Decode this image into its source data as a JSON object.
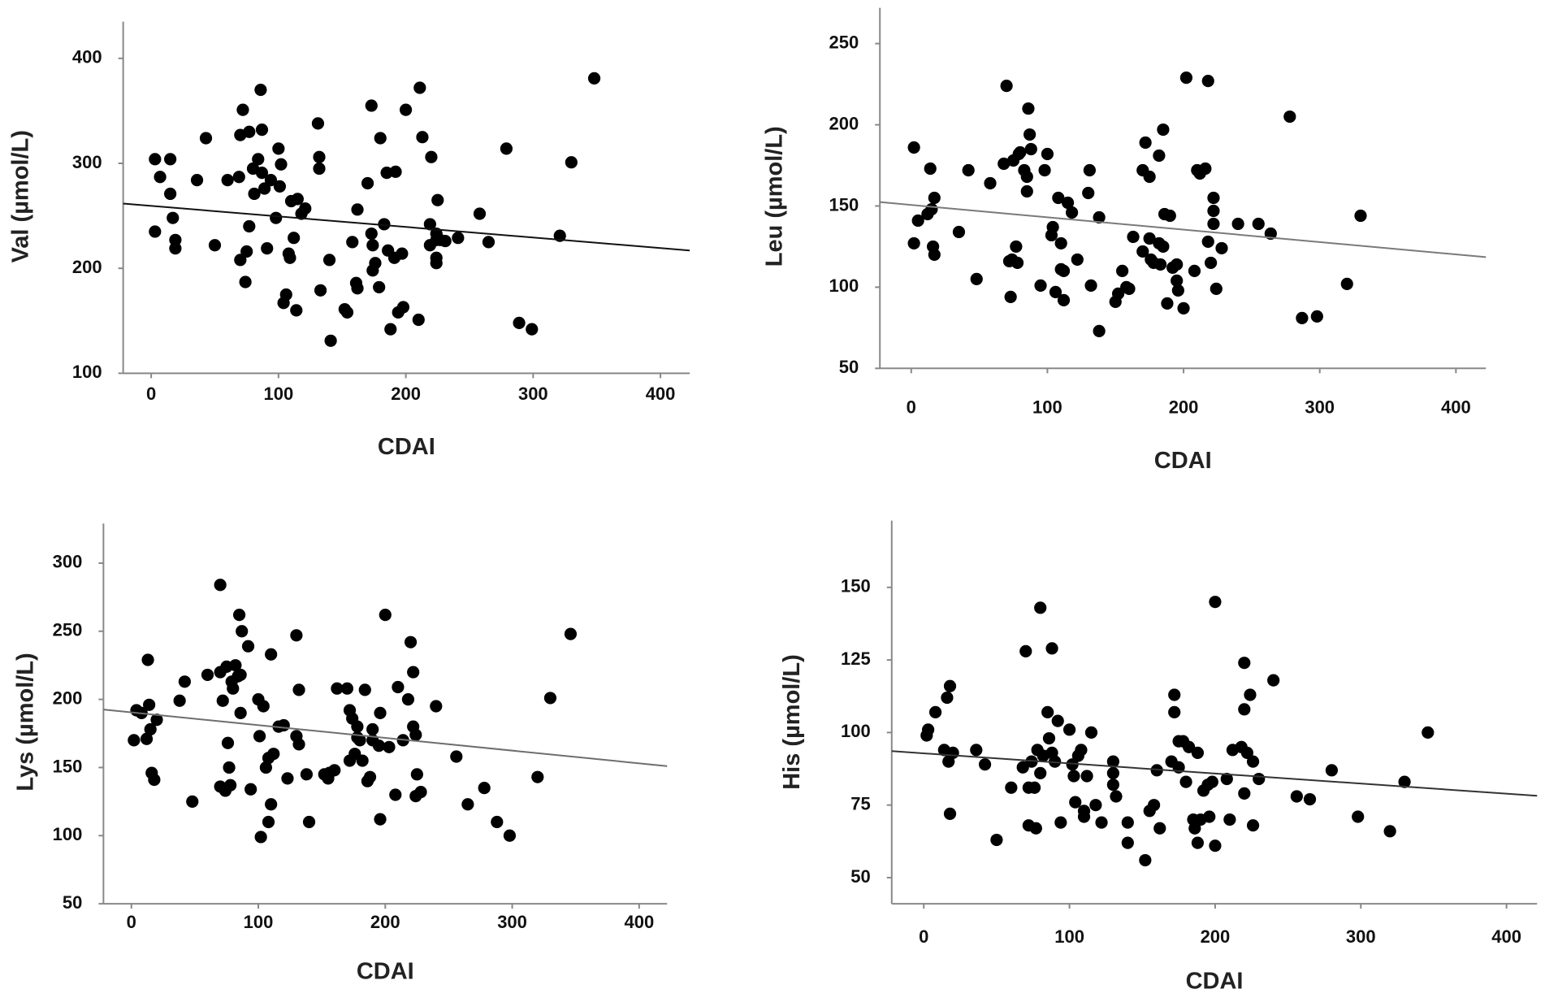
{
  "chart_data": [
    {
      "type": "scatter",
      "x_label": "CDAI",
      "y_label": "Val (µmol/L)",
      "xlim": [
        -22,
        423
      ],
      "ylim": [
        100,
        435
      ],
      "xticks": [
        0,
        100,
        200,
        300,
        400
      ],
      "yticks": [
        100,
        200,
        300,
        400
      ],
      "series": [
        {
          "color": "#000000",
          "x": [
            3,
            3,
            7,
            15,
            15,
            17,
            19,
            19,
            36,
            43,
            50,
            60,
            69,
            70,
            72,
            70,
            74,
            75,
            77,
            77,
            80,
            81,
            84,
            86,
            87,
            87,
            89,
            91,
            94,
            98,
            100,
            101,
            102,
            104,
            106,
            108,
            109,
            110,
            112,
            114,
            115,
            118,
            121,
            131,
            132,
            132,
            133,
            140,
            141,
            152,
            154,
            158,
            161,
            162,
            162,
            170,
            173,
            173,
            174,
            174,
            176,
            179,
            180,
            183,
            185,
            186,
            188,
            191,
            192,
            194,
            197,
            198,
            200,
            210,
            211,
            213,
            219,
            219,
            220,
            224,
            224,
            225,
            224,
            224,
            227,
            231,
            241,
            258,
            265,
            279,
            289,
            299,
            321,
            330,
            348
          ],
          "y": [
            235,
            304,
            287,
            304,
            271,
            248,
            227,
            219,
            284,
            324,
            222,
            284,
            287,
            327,
            351,
            208,
            187,
            216,
            240,
            330,
            295,
            271,
            304,
            370,
            332,
            291,
            276,
            219,
            284,
            248,
            314,
            278,
            299,
            167,
            175,
            214,
            210,
            264,
            229,
            160,
            266,
            252,
            257,
            338,
            295,
            306,
            179,
            208,
            131,
            161,
            158,
            225,
            186,
            256,
            181,
            281,
            355,
            233,
            198,
            222,
            205,
            182,
            324,
            242,
            291,
            217,
            142,
            210,
            292,
            158,
            214,
            163,
            351,
            151,
            372,
            325,
            222,
            242,
            306,
            210,
            233,
            265,
            227,
            205,
            227,
            226,
            229,
            252,
            225,
            314,
            148,
            142,
            231,
            301,
            381
          ]
        }
      ],
      "fit_line": {
        "color": "#111111",
        "x": [
          -22,
          423
        ],
        "y": [
          261.7,
          217
        ]
      }
    },
    {
      "type": "scatter",
      "x_label": "CDAI",
      "y_label": "Leu (µmol/L)",
      "xlim": [
        -23,
        422
      ],
      "ylim": [
        50,
        272
      ],
      "xticks": [
        0,
        100,
        200,
        300,
        400
      ],
      "yticks": [
        50,
        100,
        150,
        200,
        250
      ],
      "series": [
        {
          "color": "#000000",
          "x": [
            2,
            5,
            2,
            14,
            12,
            17,
            16,
            17,
            15,
            35,
            42,
            48,
            58,
            68,
            70,
            72,
            73,
            74,
            75,
            77,
            78,
            79,
            80,
            83,
            85,
            85,
            86,
            87,
            88,
            95,
            98,
            100,
            103,
            104,
            106,
            108,
            110,
            110,
            112,
            112,
            115,
            118,
            122,
            130,
            131,
            132,
            138,
            138,
            150,
            152,
            155,
            158,
            160,
            163,
            170,
            170,
            172,
            175,
            175,
            176,
            178,
            182,
            182,
            183,
            185,
            185,
            186,
            188,
            190,
            192,
            195,
            195,
            196,
            200,
            202,
            208,
            210,
            212,
            216,
            218,
            218,
            220,
            222,
            222,
            222,
            224,
            228,
            240,
            255,
            264,
            278,
            287,
            298,
            320,
            330
          ],
          "y": [
            186,
            141,
            127,
            173,
            145,
            155,
            125,
            120,
            148,
            134,
            172,
            105,
            164,
            176,
            224,
            116,
            94,
            117,
            178,
            125,
            115,
            182,
            183,
            172,
            168,
            159,
            210,
            194,
            185,
            101,
            172,
            182,
            132,
            137,
            97,
            155,
            111,
            127,
            92,
            110,
            152,
            146,
            117,
            158,
            172,
            101,
            73,
            143,
            91,
            96,
            110,
            100,
            99,
            131,
            122,
            172,
            189,
            168,
            130,
            117,
            115,
            181,
            127,
            114,
            125,
            197,
            145,
            90,
            144,
            112,
            114,
            104,
            98,
            87,
            229,
            110,
            172,
            170,
            173,
            128,
            227,
            115,
            139,
            147,
            155,
            99,
            124,
            139,
            139,
            133,
            205,
            81,
            82,
            102,
            144
          ]
        }
      ],
      "fit_line": {
        "color": "#7a7a7a",
        "x": [
          -23,
          422
        ],
        "y": [
          152.4,
          118.5
        ]
      }
    },
    {
      "type": "scatter",
      "x_label": "CDAI",
      "y_label": "Lys (µmol/L)",
      "xlim": [
        -22,
        422
      ],
      "ylim": [
        50,
        329
      ],
      "xticks": [
        0,
        100,
        200,
        300,
        400
      ],
      "yticks": [
        50,
        100,
        150,
        200,
        250,
        300
      ],
      "series": [
        {
          "color": "#000000",
          "x": [
            2,
            4,
            8,
            12,
            13,
            14,
            15,
            16,
            18,
            20,
            38,
            42,
            48,
            60,
            70,
            70,
            70,
            72,
            74,
            75,
            76,
            77,
            78,
            79,
            80,
            82,
            84,
            85,
            86,
            86,
            87,
            92,
            94,
            100,
            101,
            102,
            104,
            106,
            108,
            108,
            110,
            110,
            112,
            116,
            120,
            123,
            130,
            130,
            132,
            132,
            138,
            140,
            152,
            155,
            156,
            160,
            162,
            170,
            172,
            172,
            174,
            176,
            178,
            178,
            180,
            182,
            184,
            186,
            188,
            190,
            190,
            195,
            196,
            196,
            200,
            203,
            208,
            210,
            214,
            218,
            220,
            222,
            222,
            224,
            225,
            224,
            228,
            240,
            256,
            265,
            278,
            288,
            298,
            320,
            330,
            346
          ],
          "y": [
            170,
            192,
            190,
            171,
            229,
            196,
            178,
            146,
            141,
            185,
            199,
            213,
            125,
            218,
            220,
            136,
            284,
            199,
            133,
            224,
            168,
            150,
            137,
            213,
            208,
            225,
            217,
            262,
            218,
            190,
            250,
            239,
            134,
            200,
            173,
            99,
            195,
            150,
            157,
            110,
            123,
            233,
            160,
            180,
            181,
            142,
            173,
            247,
            167,
            207,
            145,
            110,
            145,
            142,
            146,
            148,
            208,
            208,
            155,
            192,
            186,
            160,
            172,
            180,
            170,
            155,
            207,
            140,
            143,
            178,
            170,
            166,
            190,
            112,
            262,
            165,
            130,
            209,
            170,
            200,
            242,
            220,
            180,
            174,
            145,
            129,
            132,
            195,
            158,
            123,
            135,
            110,
            100,
            143,
            201,
            248
          ]
        }
      ],
      "fit_line": {
        "color": "#6e6e6e",
        "x": [
          -22,
          422
        ],
        "y": [
          192.5,
          151
        ]
      }
    },
    {
      "type": "scatter",
      "x_label": "CDAI",
      "y_label": "His (µmol/L)",
      "xlim": [
        -22,
        421
      ],
      "ylim": [
        41,
        173
      ],
      "xticks": [
        0,
        100,
        200,
        300,
        400
      ],
      "yticks": [
        50,
        75,
        100,
        125,
        150
      ],
      "series": [
        {
          "color": "#000000",
          "x": [
            2,
            3,
            8,
            14,
            16,
            17,
            18,
            18,
            20,
            36,
            42,
            50,
            60,
            68,
            70,
            72,
            72,
            74,
            76,
            77,
            78,
            80,
            80,
            82,
            85,
            86,
            88,
            88,
            90,
            92,
            94,
            100,
            102,
            103,
            104,
            106,
            108,
            110,
            110,
            112,
            115,
            118,
            122,
            130,
            130,
            130,
            132,
            140,
            140,
            152,
            155,
            158,
            160,
            162,
            170,
            172,
            172,
            175,
            175,
            178,
            180,
            182,
            185,
            186,
            188,
            188,
            190,
            192,
            195,
            196,
            198,
            200,
            200,
            208,
            210,
            212,
            218,
            220,
            220,
            220,
            222,
            224,
            226,
            226,
            230,
            240,
            256,
            265,
            280,
            298,
            320,
            330,
            346
          ],
          "y": [
            99,
            101,
            107,
            94,
            112,
            90,
            116,
            72,
            93,
            94,
            89,
            63,
            81,
            88,
            128,
            81,
            68,
            90,
            81,
            67,
            94,
            86,
            143,
            92,
            107,
            98,
            129,
            93,
            90,
            104,
            69,
            101,
            89,
            85,
            76,
            92,
            94,
            71,
            73,
            85,
            100,
            75,
            69,
            82,
            90,
            86,
            78,
            62,
            69,
            56,
            73,
            75,
            87,
            67,
            90,
            113,
            107,
            88,
            97,
            97,
            83,
            95,
            70,
            67,
            93,
            62,
            70,
            80,
            82,
            71,
            83,
            61,
            145,
            84,
            70,
            94,
            95,
            79,
            108,
            124,
            93,
            113,
            68,
            90,
            84,
            118,
            78,
            77,
            87,
            71,
            66,
            83,
            100
          ]
        }
      ],
      "fit_line": {
        "color": "#333333",
        "x": [
          -22,
          421
        ],
        "y": [
          93.6,
          78.2
        ]
      }
    }
  ]
}
